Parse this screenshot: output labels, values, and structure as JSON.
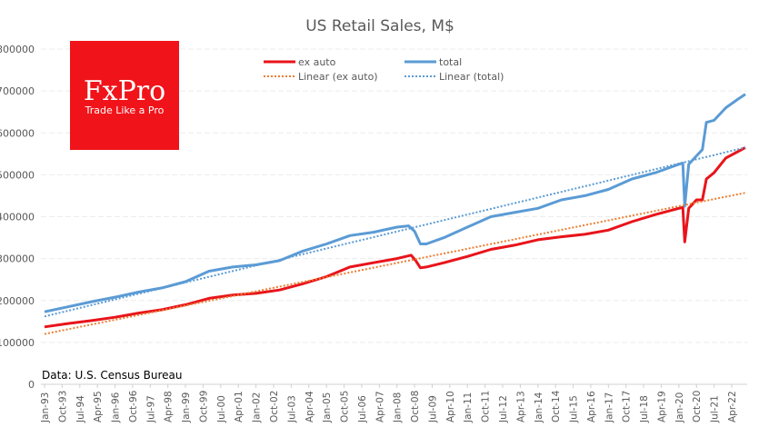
{
  "chart_data": {
    "type": "line",
    "title": "US Retail Sales, M$",
    "xlabel": "",
    "ylabel": "",
    "ylim": [
      0,
      800000
    ],
    "yticks": [
      0,
      100000,
      200000,
      300000,
      400000,
      500000,
      600000,
      700000,
      800000
    ],
    "x_tick_labels": [
      "Jan-93",
      "Oct-93",
      "Jul-94",
      "Apr-95",
      "Jan-96",
      "Oct-96",
      "Jul-97",
      "Apr-98",
      "Jan-99",
      "Oct-99",
      "Jul-00",
      "Apr-01",
      "Jan-02",
      "Oct-02",
      "Jul-03",
      "Apr-04",
      "Jan-05",
      "Oct-05",
      "Jul-06",
      "Apr-07",
      "Jan-08",
      "Oct-08",
      "Jul-09",
      "Apr-10",
      "Jan-11",
      "Oct-11",
      "Jul-12",
      "Apr-13",
      "Jan-14",
      "Oct-14",
      "Jul-15",
      "Apr-16",
      "Jan-17",
      "Oct-17",
      "Jul-18",
      "Apr-19",
      "Jan-20",
      "Oct-20",
      "Jul-21",
      "Apr-22"
    ],
    "x_unit": "decimal year",
    "grid": true,
    "legend_placement": "top-center",
    "series": [
      {
        "name": "ex auto",
        "color": "#E8141B",
        "style": "solid",
        "x": [
          1993,
          1994,
          1995,
          1996,
          1997,
          1998,
          1999,
          2000,
          2001,
          2002,
          2003,
          2004,
          2005,
          2006,
          2007,
          2008,
          2008.6,
          2008.8,
          2009,
          2009.25,
          2010,
          2011,
          2012,
          2013,
          2014,
          2015,
          2016,
          2017,
          2018,
          2019,
          2020,
          2020.17,
          2020.25,
          2020.42,
          2020.75,
          2021,
          2021.17,
          2021.5,
          2022,
          2022.5,
          2022.83
        ],
        "values": [
          137000,
          145000,
          152000,
          160000,
          170000,
          178000,
          190000,
          205000,
          213000,
          217000,
          225000,
          240000,
          257000,
          280000,
          290000,
          300000,
          308000,
          295000,
          278000,
          280000,
          290000,
          305000,
          322000,
          332000,
          345000,
          352000,
          358000,
          368000,
          388000,
          405000,
          420000,
          422000,
          340000,
          420000,
          440000,
          440000,
          490000,
          505000,
          540000,
          555000,
          565000
        ]
      },
      {
        "name": "total",
        "color": "#5B9BD5",
        "style": "solid",
        "x": [
          1993,
          1994,
          1995,
          1996,
          1997,
          1998,
          1999,
          2000,
          2001,
          2002,
          2003,
          2004,
          2005,
          2006,
          2007,
          2008,
          2008.5,
          2008.75,
          2009,
          2009.25,
          2010,
          2011,
          2012,
          2013,
          2014,
          2015,
          2016,
          2017,
          2018,
          2019,
          2020,
          2020.17,
          2020.25,
          2020.42,
          2020.75,
          2021,
          2021.17,
          2021.5,
          2022,
          2022.5,
          2022.83
        ],
        "values": [
          173000,
          185000,
          197000,
          208000,
          220000,
          230000,
          245000,
          270000,
          280000,
          285000,
          295000,
          318000,
          335000,
          355000,
          363000,
          375000,
          378000,
          365000,
          335000,
          335000,
          350000,
          375000,
          400000,
          410000,
          420000,
          440000,
          450000,
          465000,
          490000,
          505000,
          525000,
          528000,
          425000,
          525000,
          545000,
          560000,
          625000,
          630000,
          660000,
          680000,
          692000
        ]
      },
      {
        "name": "Linear (ex auto)",
        "color": "#ED7D31",
        "style": "dotted",
        "x": [
          1993,
          2022.83
        ],
        "values": [
          120000,
          457000
        ]
      },
      {
        "name": "Linear (total)",
        "color": "#5B9BD5",
        "style": "dotted",
        "x": [
          1993,
          2022.83
        ],
        "values": [
          162000,
          565000
        ]
      }
    ]
  },
  "logo": {
    "brand": "FxPro",
    "tagline": "Trade Like a Pro",
    "color": "#F0141A"
  },
  "source": "Data: U.S. Census Bureau"
}
